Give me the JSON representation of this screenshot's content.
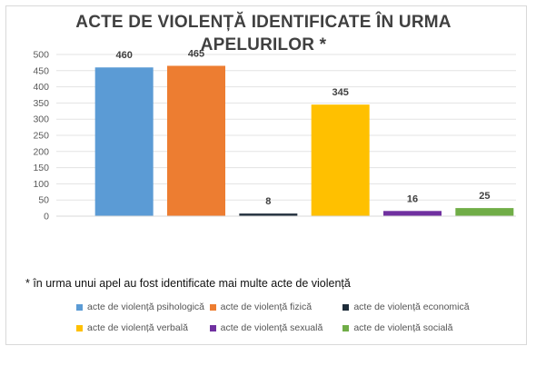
{
  "chart_data": {
    "type": "bar",
    "title": "ACTE DE VIOLENȚĂ IDENTIFICATE ÎN URMA APELURILOR *",
    "categories": [
      "acte de violență psihologică",
      "acte de violență fizică",
      "acte de violență economică",
      "acte de violență verbală",
      "acte de violență sexuală",
      "acte de violență socială"
    ],
    "values": [
      460,
      465,
      8,
      345,
      16,
      25
    ],
    "colors": [
      "#5b9bd5",
      "#ed7d31",
      "#1f2d3a",
      "#ffc000",
      "#7030a0",
      "#70ad47"
    ],
    "ylim": [
      0,
      500
    ],
    "yticks": [
      "0",
      "50",
      "100",
      "150",
      "200",
      "250",
      "300",
      "350",
      "400",
      "450",
      "500"
    ],
    "grid": true,
    "legend_position": "bottom",
    "footnote": "* în urma unui apel au fost identificate mai multe acte de violență"
  }
}
